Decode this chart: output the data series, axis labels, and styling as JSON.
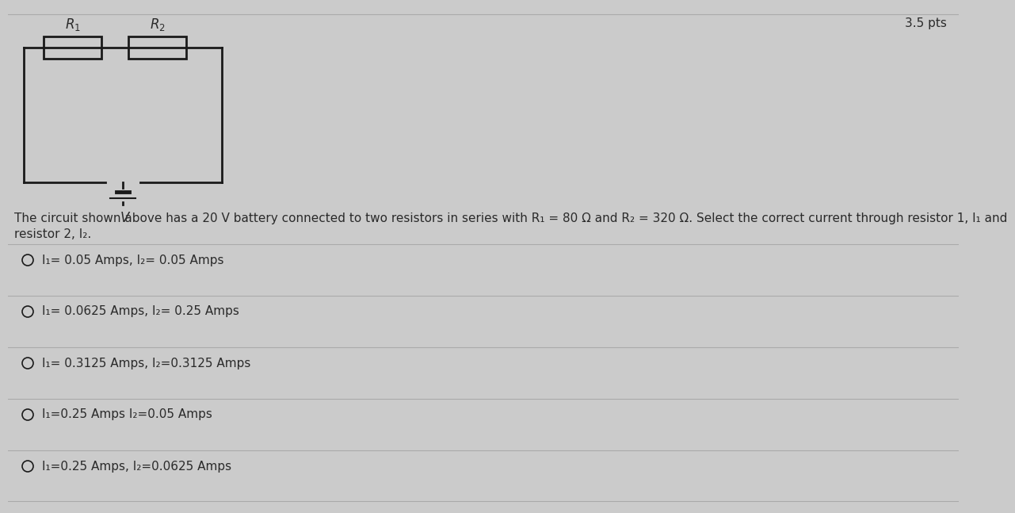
{
  "background_color": "#cbcbcb",
  "title_score": "3.5 pts",
  "description_line1": "The circuit shown above has a 20 V battery connected to two resistors in series with R₁ = 80 Ω and R₂ = 320 Ω. Select the correct current through resistor 1, I₁ and",
  "description_line2": "resistor 2, I₂.",
  "choices": [
    "I₁= 0.05 Amps, I₂= 0.05 Amps",
    "I₁= 0.0625 Amps, I₂= 0.25 Amps",
    "I₁= 0.3125 Amps, I₂=0.3125 Amps",
    "I₁=0.25 Amps I₂=0.05 Amps",
    "I₁=0.25 Amps, I₂=0.0625 Amps"
  ],
  "text_color": "#2a2a2a",
  "line_color": "#1a1a1a",
  "score_color": "#2a2a2a"
}
